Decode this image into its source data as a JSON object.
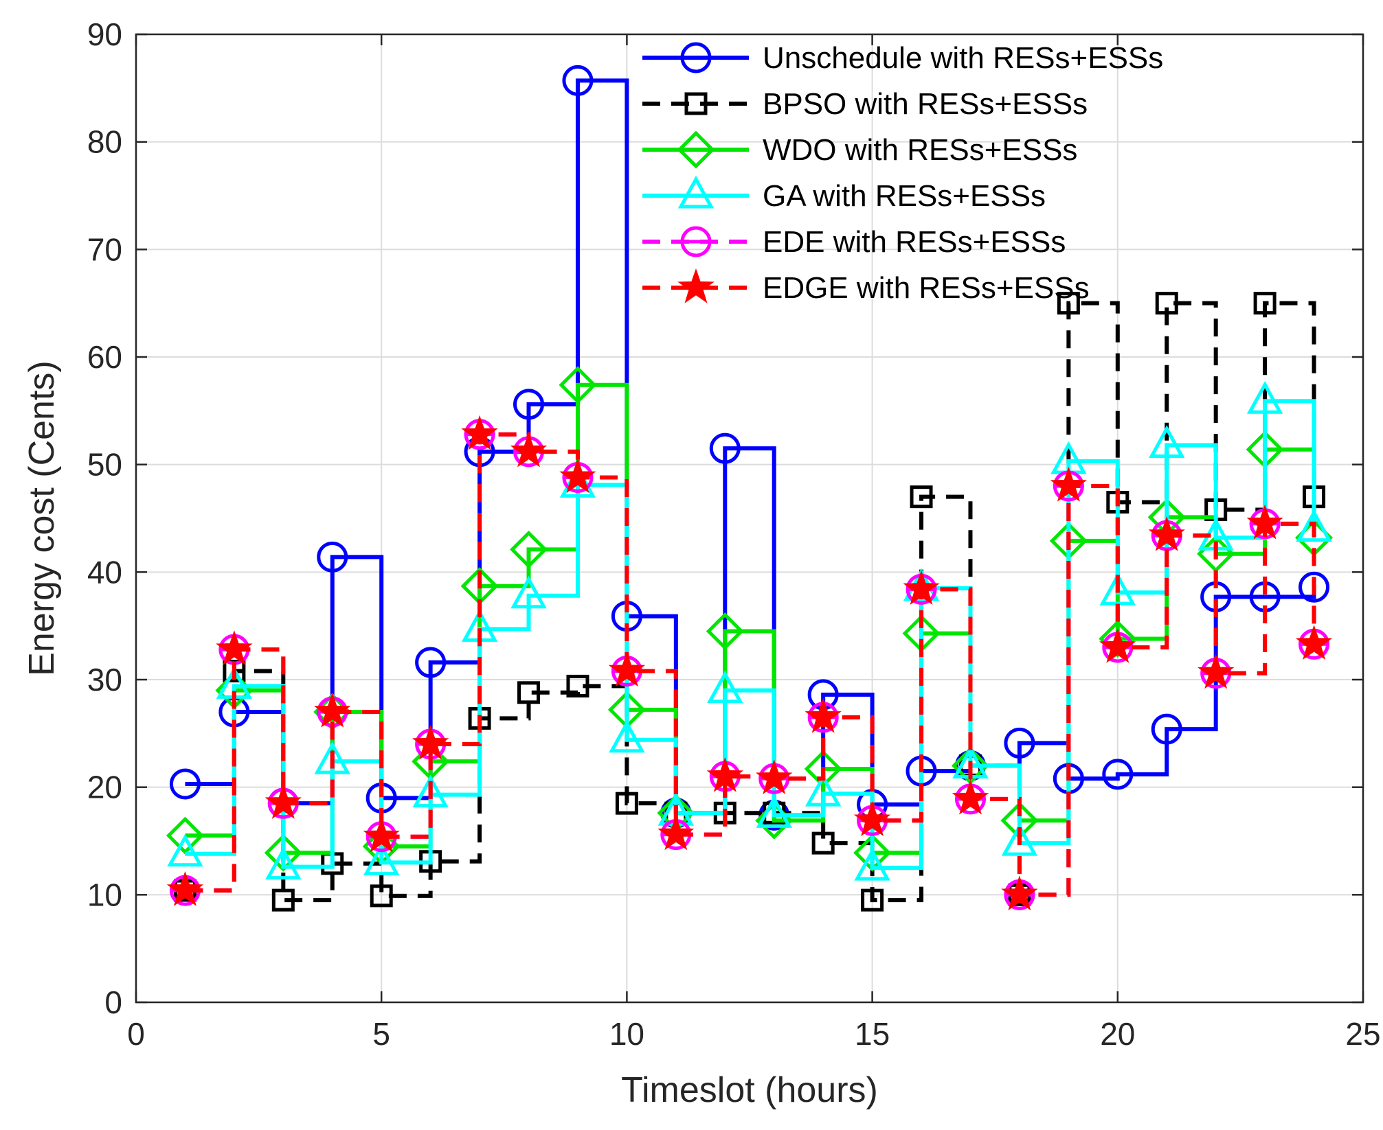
{
  "chart_data": {
    "type": "line",
    "step": true,
    "title": "",
    "xlabel": "Timeslot (hours)",
    "ylabel": "Energy cost (Cents)",
    "xlim": [
      0,
      25
    ],
    "ylim": [
      0,
      90
    ],
    "xticks": [
      0,
      5,
      10,
      15,
      20,
      25
    ],
    "yticks": [
      0,
      10,
      20,
      30,
      40,
      50,
      60,
      70,
      80,
      90
    ],
    "grid": true,
    "legend_position": "top-right",
    "x": [
      1,
      2,
      3,
      4,
      5,
      6,
      7,
      8,
      9,
      10,
      11,
      12,
      13,
      14,
      15,
      16,
      17,
      18,
      19,
      20,
      21,
      22,
      23,
      24
    ],
    "series": [
      {
        "name": "Unschedule with RESs+ESSs",
        "color": "#0000ff",
        "dash": "solid",
        "marker": "circle",
        "values": [
          20.3,
          27.0,
          18.5,
          41.4,
          19.0,
          31.6,
          51.2,
          55.6,
          85.7,
          35.9,
          17.6,
          51.5,
          17.4,
          28.6,
          18.4,
          21.5,
          22.0,
          24.1,
          20.8,
          21.2,
          25.4,
          37.7,
          37.7,
          38.6
        ]
      },
      {
        "name": "BPSO with RESs+ESSs",
        "color": "#000000",
        "dash": "dashed",
        "marker": "square",
        "values": [
          10.4,
          30.8,
          9.5,
          12.9,
          9.9,
          13.1,
          26.4,
          28.8,
          29.4,
          18.5,
          17.6,
          17.6,
          17.6,
          14.8,
          9.5,
          47.0,
          22.0,
          10.0,
          65.0,
          46.5,
          65.0,
          45.8,
          65.0,
          47.0
        ]
      },
      {
        "name": "WDO with RESs+ESSs",
        "color": "#00e600",
        "dash": "solid",
        "marker": "diamond",
        "values": [
          15.5,
          29.0,
          13.9,
          27.0,
          14.5,
          22.4,
          38.7,
          42.1,
          57.4,
          27.2,
          17.6,
          34.5,
          16.9,
          21.7,
          13.9,
          34.3,
          22.0,
          16.9,
          42.9,
          33.8,
          45.1,
          41.7,
          51.4,
          43.2
        ]
      },
      {
        "name": "GA with RESs+ESSs",
        "color": "#00ffff",
        "dash": "solid",
        "marker": "triangle",
        "values": [
          13.8,
          29.4,
          12.6,
          22.4,
          13.0,
          19.3,
          34.7,
          37.8,
          48.1,
          24.4,
          17.6,
          29.0,
          17.4,
          19.4,
          12.5,
          38.5,
          22.0,
          14.8,
          50.3,
          38.1,
          51.8,
          43.2,
          55.9,
          44.0
        ]
      },
      {
        "name": "EDE with RESs+ESSs",
        "color": "#ff00ff",
        "dash": "dashed",
        "marker": "circle-bar",
        "values": [
          10.4,
          32.8,
          18.5,
          27.0,
          15.4,
          24.0,
          52.8,
          51.2,
          48.8,
          30.8,
          15.6,
          21.0,
          20.8,
          26.5,
          16.9,
          38.4,
          18.9,
          10.0,
          48.0,
          33.0,
          43.4,
          30.6,
          44.5,
          33.3
        ]
      },
      {
        "name": "EDGE with RESs+ESSs",
        "color": "#ff0000",
        "dash": "dashed",
        "marker": "star",
        "values": [
          10.4,
          32.8,
          18.5,
          27.0,
          15.4,
          24.0,
          52.8,
          51.2,
          48.8,
          30.8,
          15.6,
          21.0,
          20.8,
          26.5,
          16.9,
          38.4,
          18.9,
          10.0,
          48.0,
          33.0,
          43.4,
          30.6,
          44.5,
          33.3
        ]
      }
    ]
  }
}
